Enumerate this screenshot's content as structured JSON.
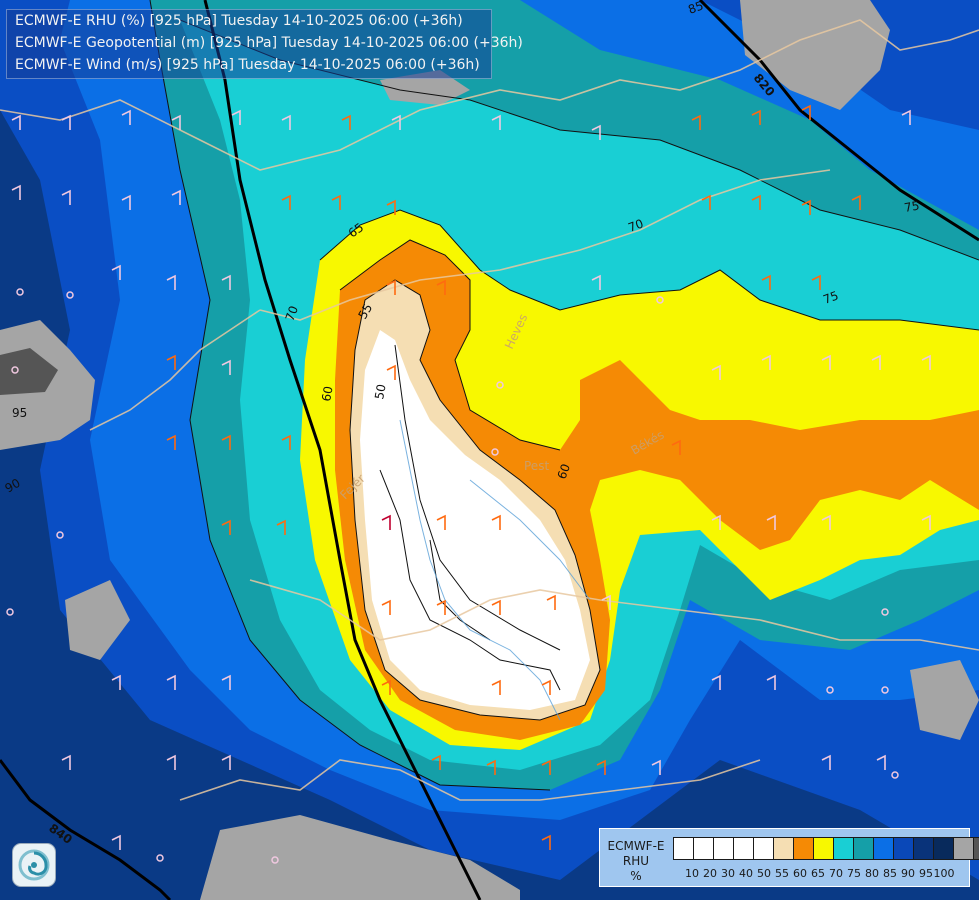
{
  "title_lines": [
    "ECMWF-E RHU (%) [925 hPa] Tuesday 14-10-2025 06:00 (+36h)",
    "ECMWF-E Geopotential (m) [925 hPa] Tuesday 14-10-2025 06:00 (+36h)",
    "ECMWF-E Wind (m/s) [925 hPa] Tuesday 14-10-2025 06:00 (+36h)"
  ],
  "legend": {
    "title_lines": [
      "ECMWF-E",
      "RHU",
      "%"
    ],
    "colors": [
      "#ffffff",
      "#ffffff",
      "#ffffff",
      "#ffffff",
      "#ffffff",
      "#f5deb3",
      "#f58a05",
      "#f8f800",
      "#19cfd4",
      "#159fa8",
      "#0b6fe6",
      "#0a48b8",
      "#09337a",
      "#082a5c",
      "#a5a5a5",
      "#555555"
    ],
    "ticks": [
      "10",
      "20",
      "30",
      "40",
      "50",
      "55",
      "60",
      "65",
      "70",
      "75",
      "80",
      "85",
      "90",
      "95",
      "100"
    ]
  },
  "contour_labels": [
    {
      "text": "85"
    },
    {
      "text": "820"
    },
    {
      "text": "65"
    },
    {
      "text": "70"
    },
    {
      "text": "55"
    },
    {
      "text": "70"
    },
    {
      "text": "60"
    },
    {
      "text": "50"
    },
    {
      "text": "75"
    },
    {
      "text": "95"
    },
    {
      "text": "90"
    },
    {
      "text": "60"
    },
    {
      "text": "840"
    },
    {
      "text": "90"
    },
    {
      "text": "75"
    }
  ],
  "place_labels": [
    "Pest",
    "Heves",
    "Békés",
    "Fejér"
  ]
}
